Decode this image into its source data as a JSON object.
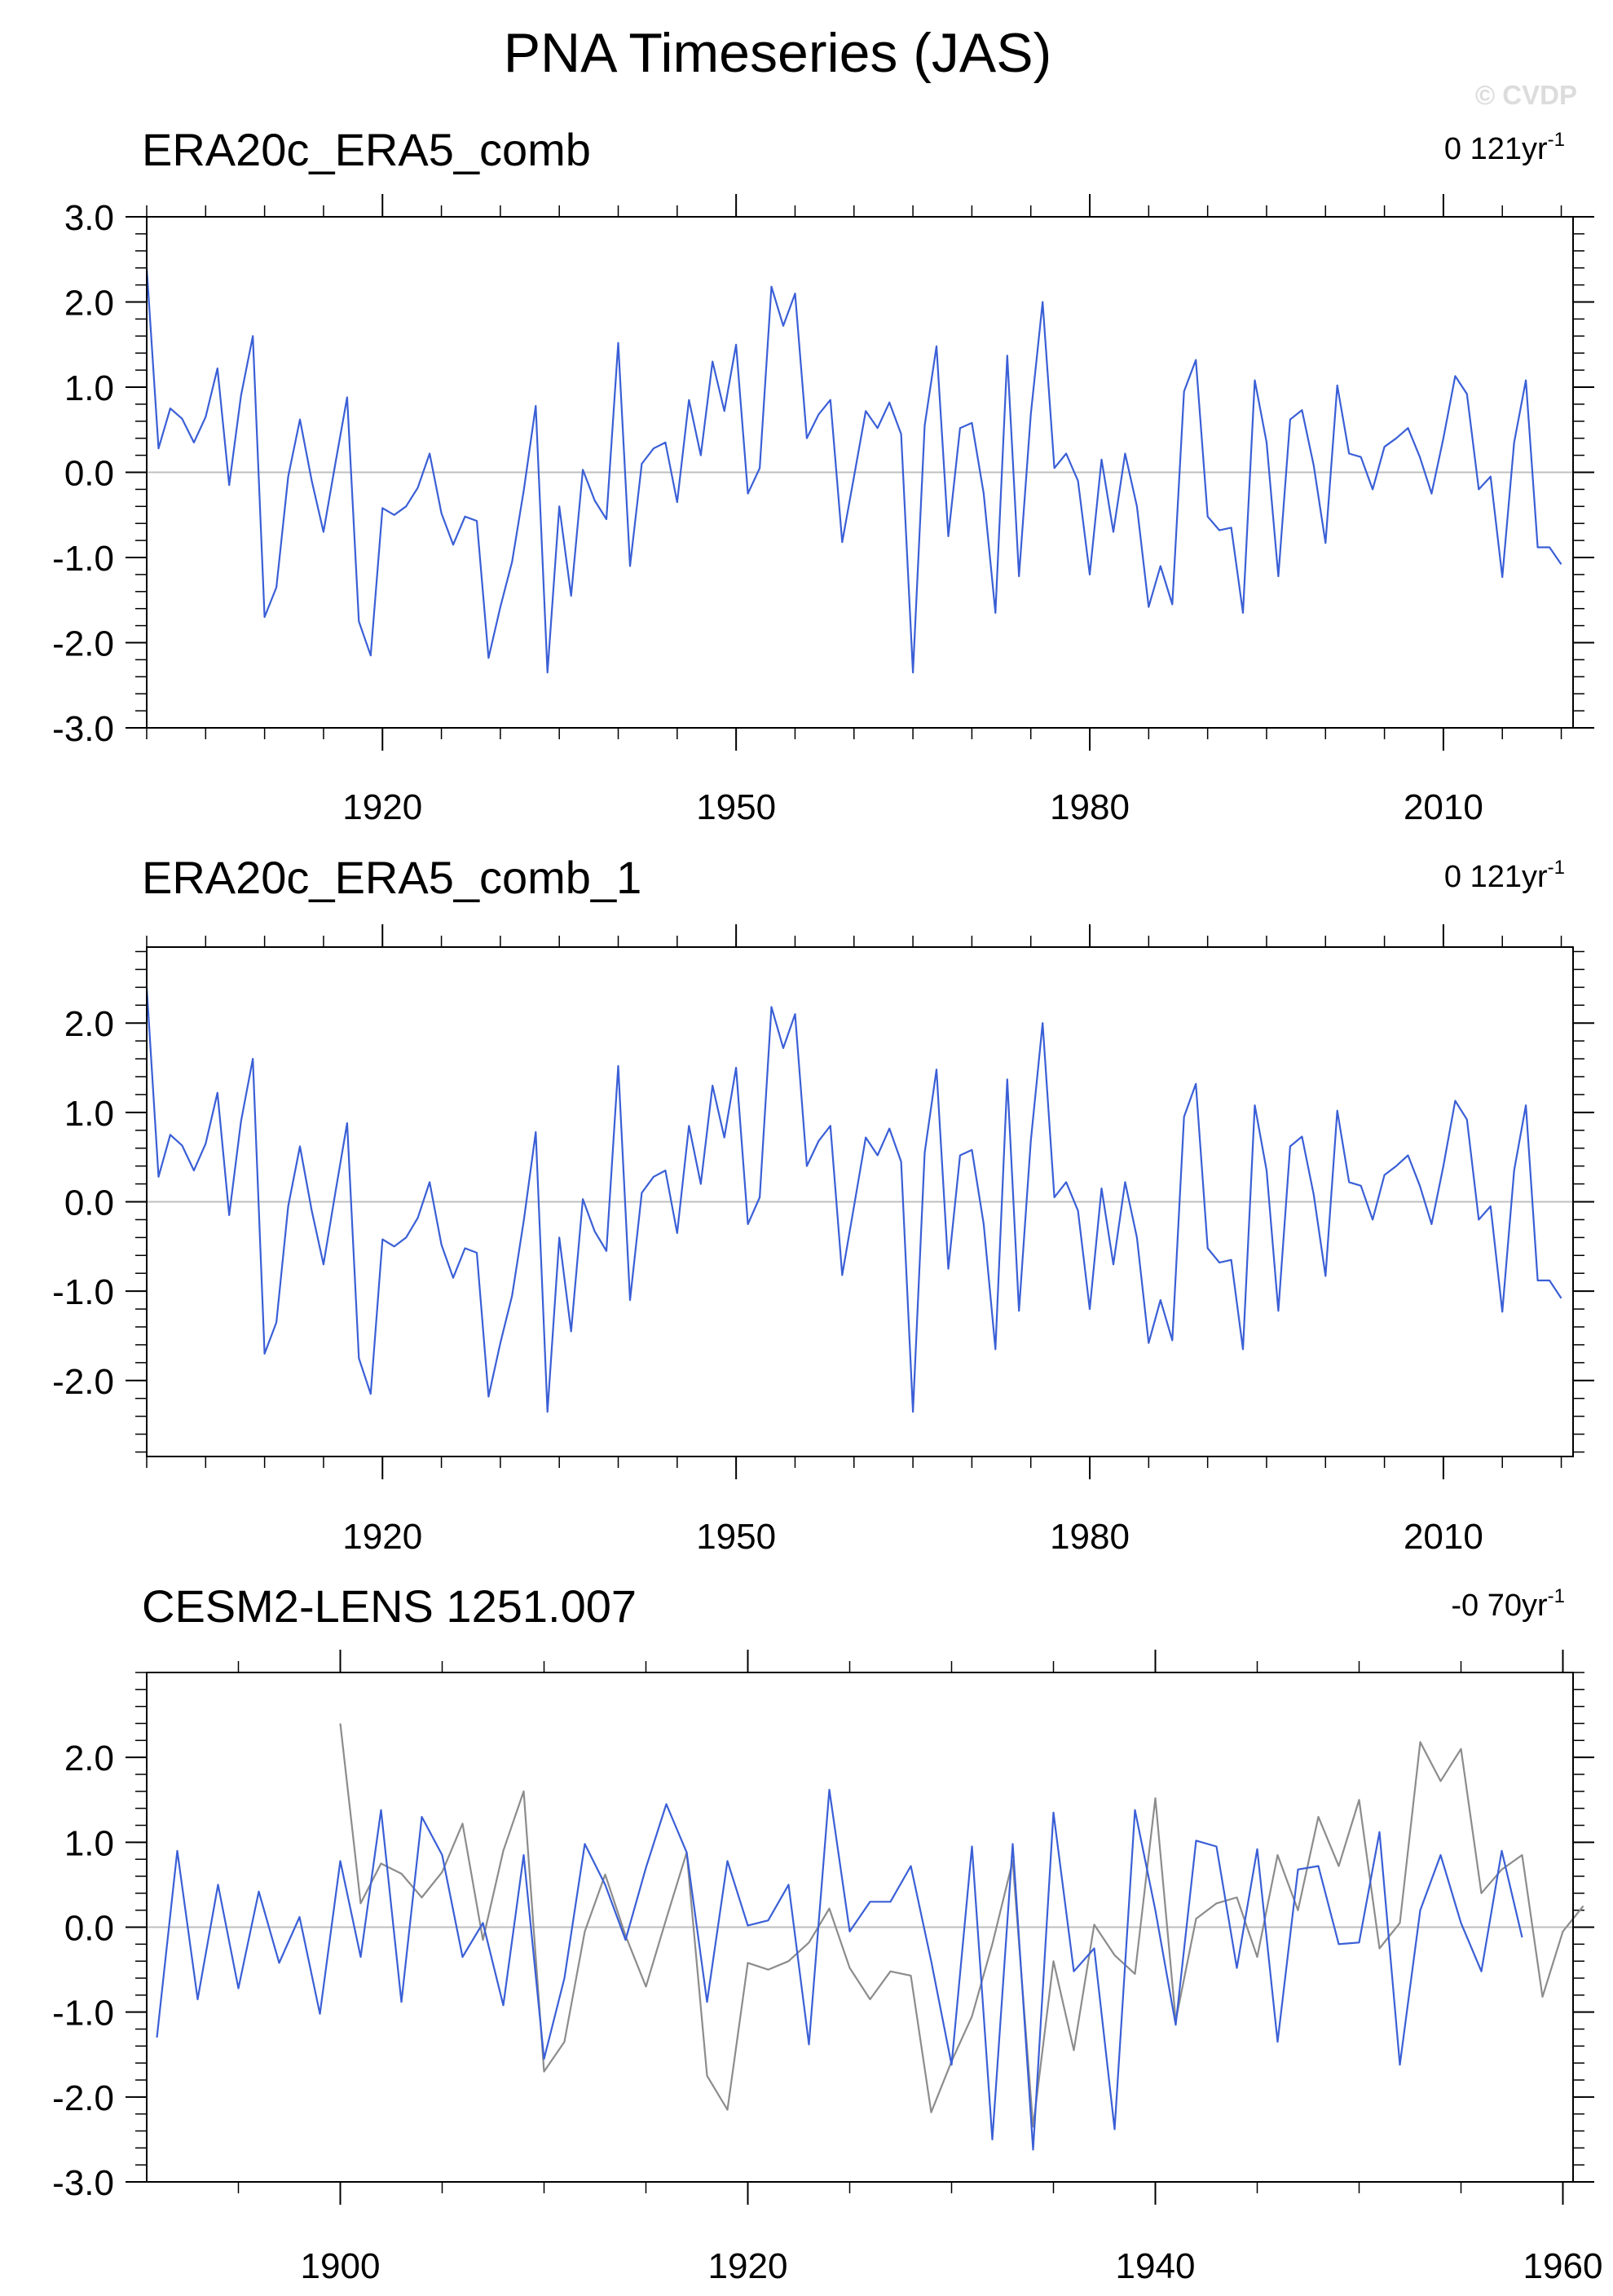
{
  "title": "PNA Timeseries (JAS)",
  "copyright": "© CVDP",
  "colors": {
    "primary_line": "#3a5fd6",
    "secondary_line": "#8c8c8c",
    "zero_line": "#bfbfbf",
    "axis": "#000000"
  },
  "chart_data": [
    {
      "type": "line",
      "title": "ERA20c_ERA5_comb",
      "trend": {
        "value": "0 121yr",
        "exponent": "-1"
      },
      "xlim": [
        1900,
        2021
      ],
      "ylim": [
        -3,
        3
      ],
      "x_ticks": [
        1920,
        1950,
        1980,
        2010
      ],
      "y_ticks": [
        "3.0",
        "2.0",
        "1.0",
        "0.0",
        "-1.0",
        "-2.0",
        "-3.0"
      ],
      "zero_line": true,
      "series": [
        {
          "role": "primary",
          "x_start": 1900,
          "values": [
            2.4,
            0.28,
            0.75,
            0.63,
            0.35,
            0.65,
            1.22,
            -0.15,
            0.9,
            1.6,
            -1.7,
            -1.35,
            -0.05,
            0.62,
            -0.1,
            -0.7,
            0.1,
            0.88,
            -1.75,
            -2.15,
            -0.42,
            -0.5,
            -0.4,
            -0.18,
            0.22,
            -0.48,
            -0.85,
            -0.52,
            -0.57,
            -2.18,
            -1.58,
            -1.05,
            -0.2,
            0.78,
            -2.35,
            -0.4,
            -1.45,
            0.03,
            -0.33,
            -0.55,
            1.52,
            -1.1,
            0.1,
            0.28,
            0.35,
            -0.35,
            0.85,
            0.2,
            1.3,
            0.72,
            1.5,
            -0.25,
            0.05,
            2.18,
            1.72,
            2.1,
            0.4,
            0.68,
            0.85,
            -0.82,
            -0.05,
            0.72,
            0.52,
            0.82,
            0.45,
            -2.35,
            0.55,
            1.48,
            -0.75,
            0.52,
            0.58,
            -0.25,
            -1.65,
            1.37,
            -1.22,
            0.68,
            2.0,
            0.05,
            0.22,
            -0.1,
            -1.2,
            0.15,
            -0.7,
            0.22,
            -0.4,
            -1.58,
            -1.1,
            -1.55,
            0.95,
            1.32,
            -0.52,
            -0.68,
            -0.65,
            -1.65,
            1.08,
            0.35,
            -1.22,
            0.62,
            0.73,
            0.08,
            -0.83,
            1.02,
            0.22,
            0.18,
            -0.2,
            0.3,
            0.4,
            0.52,
            0.18,
            -0.25,
            0.4,
            1.13,
            0.92,
            -0.2,
            -0.05,
            -1.23,
            0.35,
            1.08,
            -0.88,
            -0.88,
            -1.08
          ]
        }
      ]
    },
    {
      "type": "line",
      "title": "ERA20c_ERA5_comb_1",
      "trend": {
        "value": "0 121yr",
        "exponent": "-1"
      },
      "xlim": [
        1900,
        2021
      ],
      "ylim": [
        -2.85,
        2.85
      ],
      "x_ticks": [
        1920,
        1950,
        1980,
        2010
      ],
      "y_ticks": [
        "2.0",
        "1.0",
        "0.0",
        "-1.0",
        "-2.0"
      ],
      "zero_line": true,
      "series": [
        {
          "role": "primary",
          "x_start": 1900,
          "values": [
            2.4,
            0.28,
            0.75,
            0.63,
            0.35,
            0.65,
            1.22,
            -0.15,
            0.9,
            1.6,
            -1.7,
            -1.35,
            -0.05,
            0.62,
            -0.1,
            -0.7,
            0.1,
            0.88,
            -1.75,
            -2.15,
            -0.42,
            -0.5,
            -0.4,
            -0.18,
            0.22,
            -0.48,
            -0.85,
            -0.52,
            -0.57,
            -2.18,
            -1.58,
            -1.05,
            -0.2,
            0.78,
            -2.35,
            -0.4,
            -1.45,
            0.03,
            -0.33,
            -0.55,
            1.52,
            -1.1,
            0.1,
            0.28,
            0.35,
            -0.35,
            0.85,
            0.2,
            1.3,
            0.72,
            1.5,
            -0.25,
            0.05,
            2.18,
            1.72,
            2.1,
            0.4,
            0.68,
            0.85,
            -0.82,
            -0.05,
            0.72,
            0.52,
            0.82,
            0.45,
            -2.35,
            0.55,
            1.48,
            -0.75,
            0.52,
            0.58,
            -0.25,
            -1.65,
            1.37,
            -1.22,
            0.68,
            2.0,
            0.05,
            0.22,
            -0.1,
            -1.2,
            0.15,
            -0.7,
            0.22,
            -0.4,
            -1.58,
            -1.1,
            -1.55,
            0.95,
            1.32,
            -0.52,
            -0.68,
            -0.65,
            -1.65,
            1.08,
            0.35,
            -1.22,
            0.62,
            0.73,
            0.08,
            -0.83,
            1.02,
            0.22,
            0.18,
            -0.2,
            0.3,
            0.4,
            0.52,
            0.18,
            -0.25,
            0.4,
            1.13,
            0.92,
            -0.2,
            -0.05,
            -1.23,
            0.35,
            1.08,
            -0.88,
            -0.88,
            -1.08
          ]
        }
      ]
    },
    {
      "type": "line",
      "title": "CESM2-LENS 1251.007",
      "trend": {
        "value": "-0 70yr",
        "exponent": "-1"
      },
      "xlim": [
        1890.5,
        1960.5
      ],
      "ylim": [
        -3,
        3
      ],
      "x_ticks": [
        1900,
        1920,
        1940,
        1960
      ],
      "y_ticks": [
        "2.0",
        "1.0",
        "0.0",
        "-1.0",
        "-2.0",
        "-3.0"
      ],
      "zero_line": true,
      "series": [
        {
          "role": "primary",
          "x_start": 1891,
          "values": [
            -1.3,
            0.9,
            -0.85,
            0.5,
            -0.72,
            0.42,
            -0.42,
            0.12,
            -1.02,
            0.78,
            -0.35,
            1.38,
            -0.88,
            1.3,
            0.85,
            -0.35,
            0.05,
            -0.92,
            0.85,
            -1.55,
            -0.6,
            0.98,
            0.5,
            -0.15,
            0.7,
            1.45,
            0.88,
            -0.88,
            0.78,
            0.02,
            0.08,
            0.5,
            -1.38,
            1.62,
            -0.05,
            0.3,
            0.3,
            0.72,
            -0.4,
            -1.62,
            0.95,
            -2.5,
            0.98,
            -2.62,
            1.35,
            -0.52,
            -0.25,
            -2.38,
            1.38,
            0.2,
            -1.15,
            1.02,
            0.95,
            -0.48,
            0.92,
            -1.35,
            0.68,
            0.72,
            -0.2,
            -0.18,
            1.12,
            -1.62,
            0.2,
            0.85,
            0.05,
            -0.52,
            0.9,
            -0.12
          ]
        },
        {
          "role": "secondary",
          "x_start": 1900,
          "values": [
            2.4,
            0.28,
            0.75,
            0.63,
            0.35,
            0.65,
            1.22,
            -0.15,
            0.9,
            1.6,
            -1.7,
            -1.35,
            -0.05,
            0.62,
            -0.1,
            -0.7,
            0.1,
            0.88,
            -1.75,
            -2.15,
            -0.42,
            -0.5,
            -0.4,
            -0.18,
            0.22,
            -0.48,
            -0.85,
            -0.52,
            -0.57,
            -2.18,
            -1.58,
            -1.05,
            -0.2,
            0.78,
            -2.35,
            -0.4,
            -1.45,
            0.03,
            -0.33,
            -0.55,
            1.52,
            -1.1,
            0.1,
            0.28,
            0.35,
            -0.35,
            0.85,
            0.2,
            1.3,
            0.72,
            1.5,
            -0.25,
            0.05,
            2.18,
            1.72,
            2.1,
            0.4,
            0.68,
            0.85,
            -0.82,
            -0.05,
            0.25
          ]
        }
      ]
    }
  ]
}
